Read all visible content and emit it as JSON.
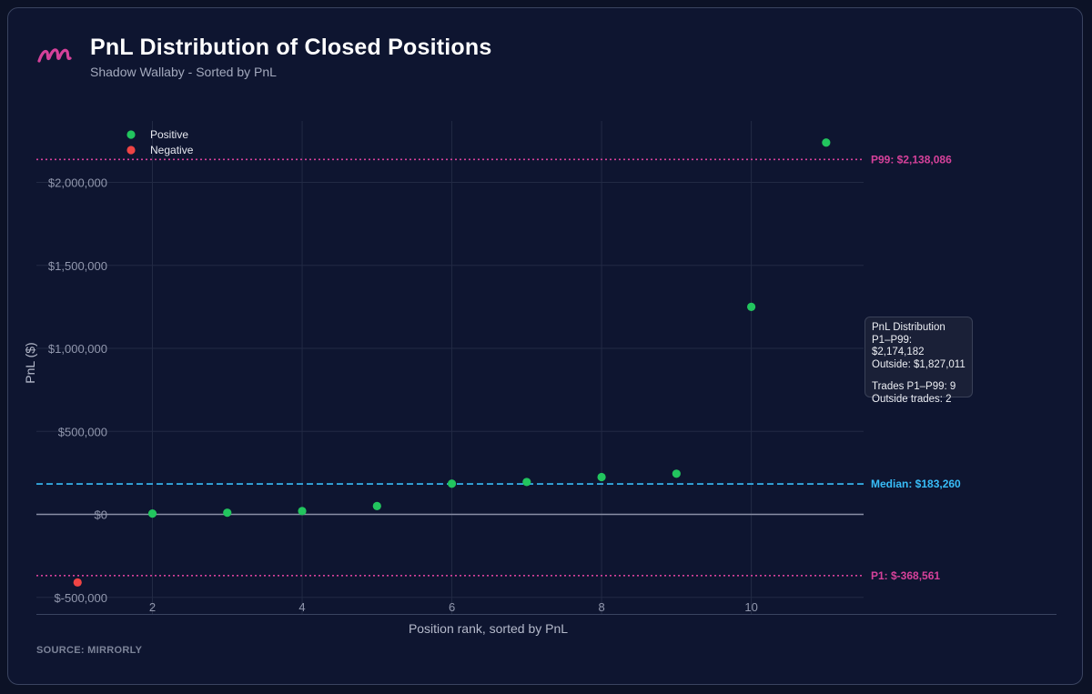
{
  "header": {
    "title": "PnL Distribution of Closed Positions",
    "subtitle": "Shadow Wallaby - Sorted by PnL"
  },
  "footer": {
    "source": "SOURCE: MIRRORLY"
  },
  "colors": {
    "positive": "#22c55e",
    "negative": "#ef4444",
    "percentile_line": "#d6419a",
    "median_line": "#38bdf8",
    "zero_line": "#8a8fa6",
    "logo": "#d6419a"
  },
  "infobox": {
    "title": "PnL Distribution",
    "p1_p99": "P1–P99: $2,174,182",
    "outside": "Outside: $1,827,011",
    "trades_p1_p99": "Trades P1–P99: 9",
    "outside_trades": "Outside trades: 2"
  },
  "chart_data": {
    "type": "scatter",
    "xlabel": "Position rank, sorted by PnL",
    "ylabel": "PnL ($)",
    "x_ticks": [
      2,
      4,
      6,
      8,
      10
    ],
    "y_ticks": [
      {
        "value": -500000,
        "label": "$-500,000"
      },
      {
        "value": 0,
        "label": "$0"
      },
      {
        "value": 500000,
        "label": "$500,000"
      },
      {
        "value": 1000000,
        "label": "$1,000,000"
      },
      {
        "value": 1500000,
        "label": "$1,500,000"
      },
      {
        "value": 2000000,
        "label": "$2,000,000"
      }
    ],
    "xlim": [
      0.45,
      11.5
    ],
    "ylim": [
      -600000,
      2370000
    ],
    "grid": true,
    "legend_position": "top-left",
    "series": [
      {
        "name": "Positive",
        "color_key": "positive",
        "points": [
          {
            "x": 2,
            "y": 5000
          },
          {
            "x": 3,
            "y": 10000
          },
          {
            "x": 4,
            "y": 20000
          },
          {
            "x": 5,
            "y": 50000
          },
          {
            "x": 6,
            "y": 185000
          },
          {
            "x": 7,
            "y": 195000
          },
          {
            "x": 8,
            "y": 225000
          },
          {
            "x": 9,
            "y": 245000
          },
          {
            "x": 10,
            "y": 1250000
          },
          {
            "x": 11,
            "y": 2240000
          }
        ]
      },
      {
        "name": "Negative",
        "color_key": "negative",
        "points": [
          {
            "x": 1,
            "y": -410000
          }
        ]
      }
    ],
    "reference_lines": [
      {
        "name": "P99",
        "value": 2138086,
        "label": "P99: $2,138,086",
        "style": "dotted",
        "color_key": "percentile_line"
      },
      {
        "name": "Median",
        "value": 183260,
        "label": "Median: $183,260",
        "style": "dashed",
        "color_key": "median_line"
      },
      {
        "name": "P1",
        "value": -368561,
        "label": "P1: $-368,561",
        "style": "dotted",
        "color_key": "percentile_line"
      }
    ]
  }
}
